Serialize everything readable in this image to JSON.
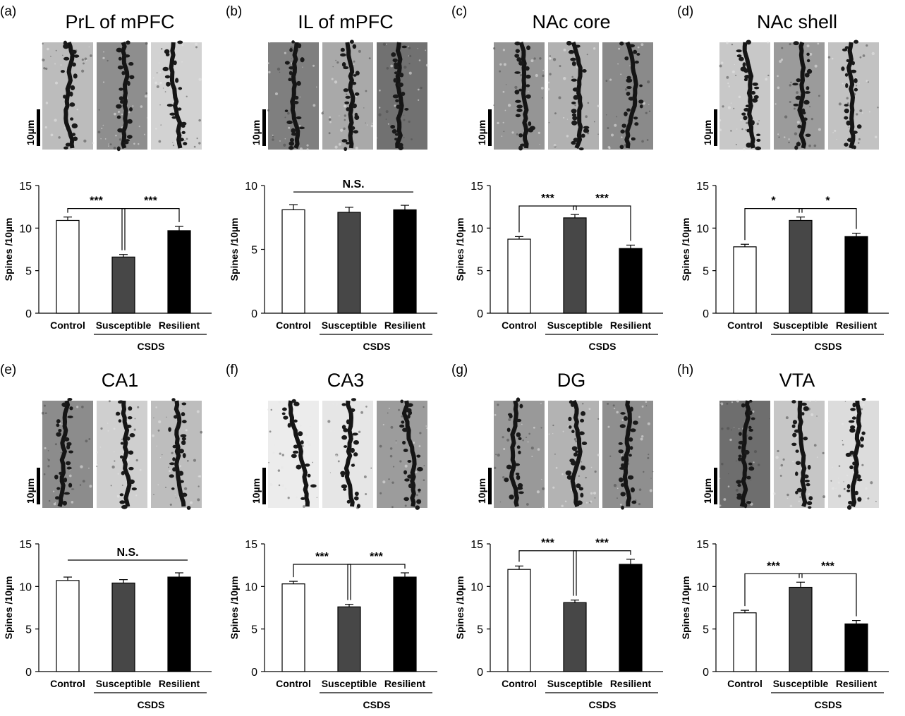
{
  "theme": {
    "control_fill": "#ffffff",
    "susceptible_fill": "#474747",
    "resilient_fill": "#000000"
  },
  "shared": {
    "categories": [
      "Control",
      "Susceptible",
      "Resilient"
    ],
    "ylabel": "Spines /10µm",
    "group_label": "CSDS",
    "scale_label": "10µm"
  },
  "chart_data": [
    {
      "panel": "(a)",
      "title": "PrL of mPFC",
      "type": "bar",
      "categories": [
        "Control",
        "Susceptible",
        "Resilient"
      ],
      "values": [
        10.9,
        6.6,
        9.7
      ],
      "errors": [
        0.4,
        0.3,
        0.5
      ],
      "ylim": [
        0,
        15
      ],
      "yticks": [
        0,
        5,
        10,
        15
      ],
      "ylabel": "Spines /10µm",
      "significance": [
        "***",
        "***"
      ],
      "ns": "",
      "backgrounds": [
        "#bcbcbc",
        "#8e8e8e",
        "#d2d2d2"
      ]
    },
    {
      "panel": "(b)",
      "title": "IL of mPFC",
      "type": "bar",
      "categories": [
        "Control",
        "Susceptible",
        "Resilient"
      ],
      "values": [
        8.1,
        7.9,
        8.1
      ],
      "errors": [
        0.4,
        0.4,
        0.35
      ],
      "ylim": [
        0,
        10
      ],
      "yticks": [
        0,
        5,
        10
      ],
      "ylabel": "Spines /10µm",
      "significance": [],
      "ns": "N.S.",
      "backgrounds": [
        "#7f7f7f",
        "#a9a9a9",
        "#717171"
      ]
    },
    {
      "panel": "(c)",
      "title": "NAc core",
      "type": "bar",
      "categories": [
        "Control",
        "Susceptible",
        "Resilient"
      ],
      "values": [
        8.7,
        11.2,
        7.6
      ],
      "errors": [
        0.3,
        0.4,
        0.4
      ],
      "ylim": [
        0,
        15
      ],
      "yticks": [
        0,
        5,
        10,
        15
      ],
      "ylabel": "Spines /10µm",
      "significance": [
        "***",
        "***"
      ],
      "ns": "",
      "backgrounds": [
        "#959595",
        "#b1b1b1",
        "#8a8a8a"
      ]
    },
    {
      "panel": "(d)",
      "title": "NAc shell",
      "type": "bar",
      "categories": [
        "Control",
        "Susceptible",
        "Resilient"
      ],
      "values": [
        7.8,
        10.9,
        9.0
      ],
      "errors": [
        0.3,
        0.4,
        0.4
      ],
      "ylim": [
        0,
        15
      ],
      "yticks": [
        0,
        5,
        10,
        15
      ],
      "ylabel": "Spines /10µm",
      "significance": [
        "*",
        "*"
      ],
      "ns": "",
      "backgrounds": [
        "#c8c8c8",
        "#9b9b9b",
        "#c2c2c2"
      ]
    },
    {
      "panel": "(e)",
      "title": "CA1",
      "type": "bar",
      "categories": [
        "Control",
        "Susceptible",
        "Resilient"
      ],
      "values": [
        10.7,
        10.4,
        11.1
      ],
      "errors": [
        0.4,
        0.4,
        0.5
      ],
      "ylim": [
        0,
        15
      ],
      "yticks": [
        0,
        5,
        10,
        15
      ],
      "ylabel": "Spines /10µm",
      "significance": [],
      "ns": "N.S.",
      "backgrounds": [
        "#8c8c8c",
        "#cfcfcf",
        "#bdbdbd"
      ]
    },
    {
      "panel": "(f)",
      "title": "CA3",
      "type": "bar",
      "categories": [
        "Control",
        "Susceptible",
        "Resilient"
      ],
      "values": [
        10.3,
        7.6,
        11.1
      ],
      "errors": [
        0.3,
        0.3,
        0.5
      ],
      "ylim": [
        0,
        15
      ],
      "yticks": [
        0,
        5,
        10,
        15
      ],
      "ylabel": "Spines /10µm",
      "significance": [
        "***",
        "***"
      ],
      "ns": "",
      "backgrounds": [
        "#ececec",
        "#e6e6e6",
        "#9c9c9c"
      ]
    },
    {
      "panel": "(g)",
      "title": "DG",
      "type": "bar",
      "categories": [
        "Control",
        "Susceptible",
        "Resilient"
      ],
      "values": [
        12.0,
        8.1,
        12.6
      ],
      "errors": [
        0.4,
        0.3,
        0.6
      ],
      "ylim": [
        0,
        15
      ],
      "yticks": [
        0,
        5,
        10,
        15
      ],
      "ylabel": "Spines /10µm",
      "significance": [
        "***",
        "***"
      ],
      "ns": "",
      "backgrounds": [
        "#999999",
        "#b3b3b3",
        "#8f8f8f"
      ]
    },
    {
      "panel": "(h)",
      "title": "VTA",
      "type": "bar",
      "categories": [
        "Control",
        "Susceptible",
        "Resilient"
      ],
      "values": [
        6.9,
        9.9,
        5.6
      ],
      "errors": [
        0.3,
        0.6,
        0.4
      ],
      "ylim": [
        0,
        15
      ],
      "yticks": [
        0,
        5,
        10,
        15
      ],
      "ylabel": "Spines /10µm",
      "significance": [
        "***",
        "***"
      ],
      "ns": "",
      "backgrounds": [
        "#6e6e6e",
        "#c6c6c6",
        "#dcdcdc"
      ]
    }
  ]
}
